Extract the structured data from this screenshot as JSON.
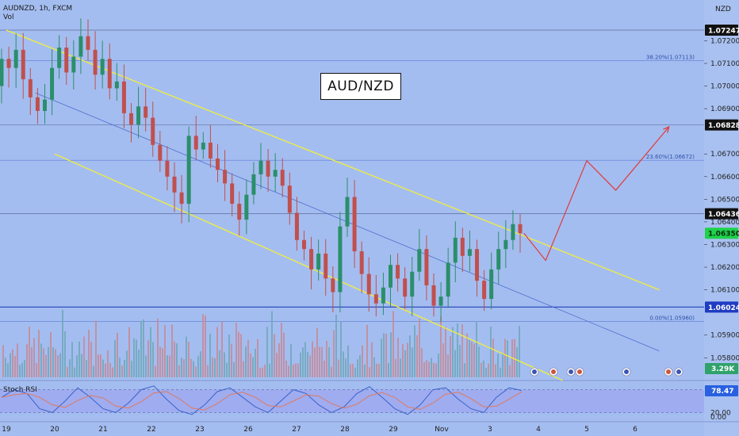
{
  "header": {
    "symbol_line": "AUDNZD, 1h, FXCM",
    "vol_label": "Vol"
  },
  "title_box": "AUD/NZD",
  "currency": "NZD",
  "indicator": {
    "name": "Stoch RSI",
    "value_tag": "78.47",
    "axis_ticks": [
      "80.00",
      "20.00",
      "0.00"
    ]
  },
  "volume_tag": "3.29K",
  "colors": {
    "background": "#a4bdf0",
    "up": "#2a8f6a",
    "down": "#c0504d",
    "channel": "#f2ef3a",
    "midline": "#4e6fd0",
    "projection": "#e03a3a",
    "stoch_k": "#3a63c8",
    "stoch_d": "#e07a5f",
    "stoch_band": "#9b9ef0"
  },
  "chart_data": {
    "type": "candlestick",
    "symbol": "AUDNZD",
    "timeframe": "1h",
    "y_ticks": [
      "1.07200",
      "1.07100",
      "1.07000",
      "1.06900",
      "1.06700",
      "1.06600",
      "1.06500",
      "1.06400",
      "1.06300",
      "1.06200",
      "1.06100",
      "1.05900",
      "1.05800"
    ],
    "price_tags": [
      {
        "label": "1.07247",
        "value": 1.07247,
        "style": "dark"
      },
      {
        "label": "1.06828",
        "value": 1.06828,
        "style": "dark"
      },
      {
        "label": "1.06436",
        "value": 1.06436,
        "style": "dark"
      },
      {
        "label": "1.06350",
        "value": 1.0635,
        "style": "green"
      },
      {
        "label": "1.06024",
        "value": 1.06024,
        "style": "blue"
      }
    ],
    "fib_levels": [
      {
        "label": "38.20%(1.07113)",
        "value": 1.07113
      },
      {
        "label": "23.60%(1.06672)",
        "value": 1.06672
      },
      {
        "label": "0.00%(1.05960)",
        "value": 1.0596
      }
    ],
    "x_labels": [
      "19",
      "20",
      "21",
      "22",
      "23",
      "26",
      "27",
      "28",
      "29",
      "Nov",
      "3",
      "4",
      "5",
      "6"
    ],
    "ylim": [
      1.0571,
      1.0738
    ],
    "channel": {
      "upper": [
        [
          0,
          1.07247
        ],
        [
          13.5,
          1.061
        ]
      ],
      "lower": [
        [
          1.0,
          1.067
        ],
        [
          11.5,
          1.057
        ]
      ],
      "mid": [
        [
          0.6,
          1.0697
        ],
        [
          13.5,
          1.0583
        ]
      ]
    },
    "projection": [
      [
        10.7,
        1.0635
      ],
      [
        11.15,
        1.0623
      ],
      [
        12.0,
        1.0667
      ],
      [
        12.6,
        1.0654
      ],
      [
        13.7,
        1.0682
      ]
    ],
    "candles_close": [
      1.0712,
      1.0708,
      1.0716,
      1.0703,
      1.0695,
      1.0689,
      1.0694,
      1.0708,
      1.0717,
      1.0706,
      1.0713,
      1.0722,
      1.0716,
      1.0705,
      1.0712,
      1.0699,
      1.0702,
      1.0688,
      1.0683,
      1.0691,
      1.0686,
      1.0674,
      1.0667,
      1.066,
      1.0653,
      1.0648,
      1.0678,
      1.0672,
      1.0675,
      1.0668,
      1.0663,
      1.0657,
      1.0648,
      1.0641,
      1.0652,
      1.0661,
      1.0667,
      1.066,
      1.0663,
      1.0656,
      1.0644,
      1.0632,
      1.0628,
      1.0619,
      1.0626,
      1.0615,
      1.0609,
      1.0638,
      1.0651,
      1.0627,
      1.0617,
      1.0608,
      1.0604,
      1.0611,
      1.0621,
      1.0615,
      1.0607,
      1.0618,
      1.0628,
      1.0612,
      1.0603,
      1.0607,
      1.0622,
      1.0633,
      1.0625,
      1.0628,
      1.0614,
      1.0606,
      1.0619,
      1.0628,
      1.0632,
      1.0639,
      1.0635
    ],
    "volume_range": [
      0,
      5000
    ],
    "stoch_rsi": {
      "ylim": [
        0,
        100
      ],
      "k": [
        60,
        80,
        70,
        30,
        20,
        50,
        85,
        60,
        30,
        20,
        45,
        80,
        90,
        55,
        25,
        15,
        40,
        75,
        85,
        60,
        35,
        20,
        50,
        80,
        70,
        40,
        20,
        35,
        70,
        88,
        60,
        30,
        15,
        40,
        80,
        85,
        55,
        30,
        20,
        60,
        85,
        78
      ]
    }
  }
}
